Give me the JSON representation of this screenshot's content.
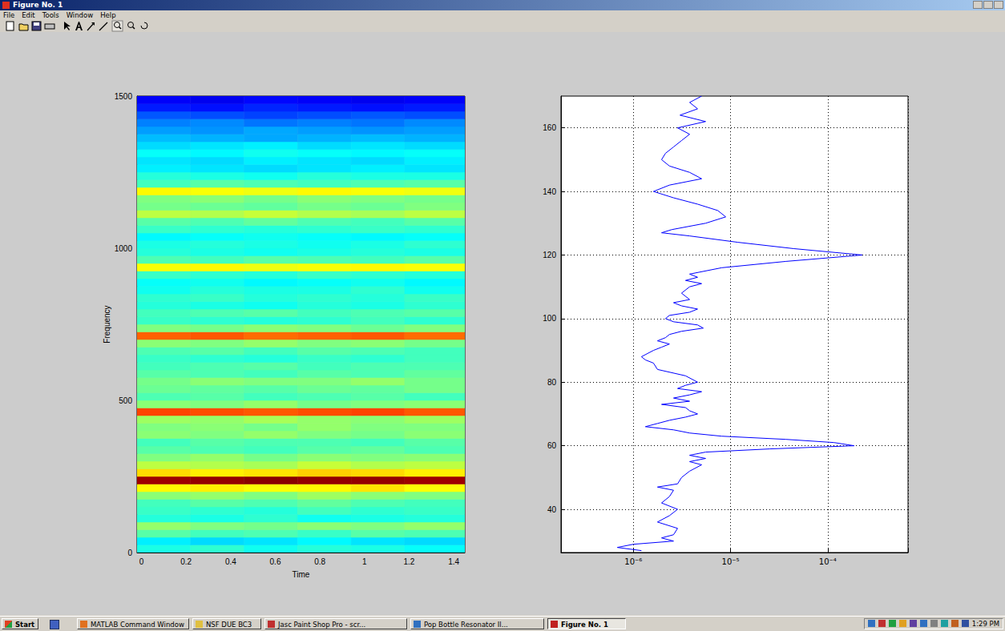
{
  "window": {
    "title": "Figure No. 1",
    "menu": [
      "File",
      "Edit",
      "Tools",
      "Window",
      "Help"
    ]
  },
  "chart_data": [
    {
      "type": "heatmap",
      "xlabel": "Time",
      "ylabel": "Frequency",
      "xlim": [
        -0.02,
        1.45
      ],
      "xticks": [
        0,
        0.2,
        0.4,
        0.6,
        0.8,
        1,
        1.2,
        1.4
      ],
      "ylim": [
        0,
        1500
      ],
      "yticks": [
        0,
        500,
        1000,
        1500
      ],
      "time_edges": [
        -0.02,
        0.22,
        0.46,
        0.7,
        0.94,
        1.18,
        1.45
      ],
      "frequency_edges": [
        0,
        25,
        50,
        75,
        100,
        125,
        150,
        175,
        200,
        225,
        250,
        275,
        300,
        325,
        350,
        375,
        400,
        425,
        450,
        475,
        500,
        525,
        550,
        575,
        600,
        625,
        650,
        675,
        700,
        725,
        750,
        775,
        800,
        825,
        850,
        875,
        900,
        925,
        950,
        975,
        1000,
        1025,
        1050,
        1075,
        1100,
        1125,
        1150,
        1175,
        1200,
        1225,
        1250,
        1275,
        1300,
        1325,
        1350,
        1375,
        1400,
        1425,
        1450,
        1475,
        1500
      ],
      "color_range": [
        0,
        100
      ],
      "cells": [
        [
          40,
          42,
          39,
          41,
          40,
          38
        ],
        [
          36,
          34,
          35,
          37,
          35,
          34
        ],
        [
          46,
          44,
          45,
          43,
          46,
          45
        ],
        [
          52,
          50,
          49,
          51,
          50,
          52
        ],
        [
          41,
          40,
          42,
          39,
          40,
          41
        ],
        [
          43,
          42,
          41,
          44,
          42,
          43
        ],
        [
          44,
          46,
          45,
          47,
          45,
          44
        ],
        [
          51,
          52,
          50,
          53,
          51,
          50
        ],
        [
          63,
          64,
          62,
          63,
          65,
          62
        ],
        [
          97,
          98,
          99,
          98,
          98,
          97
        ],
        [
          66,
          64,
          65,
          67,
          66,
          64
        ],
        [
          56,
          55,
          54,
          57,
          55,
          56
        ],
        [
          50,
          52,
          49,
          51,
          50,
          51
        ],
        [
          46,
          45,
          44,
          46,
          47,
          45
        ],
        [
          44,
          46,
          45,
          45,
          44,
          46
        ],
        [
          51,
          50,
          52,
          50,
          49,
          51
        ],
        [
          50,
          51,
          49,
          52,
          50,
          50
        ],
        [
          53,
          52,
          54,
          52,
          51,
          53
        ],
        [
          81,
          80,
          79,
          80,
          81,
          79
        ],
        [
          51,
          50,
          52,
          49,
          50,
          51
        ],
        [
          45,
          46,
          44,
          45,
          46,
          44
        ],
        [
          48,
          47,
          46,
          48,
          47,
          49
        ],
        [
          49,
          51,
          50,
          50,
          52,
          49
        ],
        [
          46,
          45,
          44,
          46,
          45,
          47
        ],
        [
          44,
          45,
          46,
          44,
          45,
          45
        ],
        [
          43,
          42,
          41,
          43,
          42,
          44
        ],
        [
          45,
          46,
          44,
          46,
          45,
          44
        ],
        [
          51,
          50,
          52,
          50,
          51,
          49
        ],
        [
          78,
          79,
          77,
          78,
          79,
          77
        ],
        [
          50,
          49,
          51,
          50,
          48,
          50
        ],
        [
          43,
          42,
          41,
          42,
          44,
          42
        ],
        [
          44,
          45,
          46,
          44,
          45,
          46
        ],
        [
          41,
          40,
          39,
          41,
          40,
          42
        ],
        [
          42,
          43,
          41,
          42,
          41,
          43
        ],
        [
          39,
          41,
          40,
          40,
          42,
          39
        ],
        [
          38,
          39,
          37,
          38,
          39,
          37
        ],
        [
          43,
          42,
          41,
          43,
          42,
          41
        ],
        [
          62,
          63,
          61,
          62,
          63,
          62
        ],
        [
          45,
          44,
          46,
          45,
          44,
          46
        ],
        [
          41,
          40,
          39,
          40,
          41,
          40
        ],
        [
          40,
          41,
          40,
          39,
          40,
          42
        ],
        [
          37,
          38,
          39,
          38,
          37,
          38
        ],
        [
          43,
          42,
          41,
          42,
          43,
          42
        ],
        [
          46,
          45,
          47,
          45,
          44,
          46
        ],
        [
          56,
          55,
          57,
          55,
          54,
          56
        ],
        [
          49,
          48,
          47,
          49,
          48,
          50
        ],
        [
          50,
          51,
          49,
          51,
          50,
          49
        ],
        [
          63,
          62,
          61,
          63,
          62,
          61
        ],
        [
          44,
          46,
          45,
          44,
          45,
          46
        ],
        [
          41,
          40,
          39,
          41,
          40,
          40
        ],
        [
          36,
          35,
          34,
          35,
          36,
          35
        ],
        [
          35,
          34,
          36,
          35,
          34,
          36
        ],
        [
          38,
          37,
          39,
          38,
          37,
          38
        ],
        [
          34,
          35,
          36,
          34,
          35,
          34
        ],
        [
          31,
          30,
          29,
          30,
          31,
          30
        ],
        [
          28,
          27,
          29,
          28,
          27,
          28
        ],
        [
          25,
          26,
          24,
          25,
          24,
          26
        ],
        [
          21,
          20,
          19,
          20,
          21,
          20
        ],
        [
          15,
          14,
          16,
          15,
          14,
          15
        ],
        [
          12,
          11,
          13,
          12,
          11,
          12
        ]
      ]
    },
    {
      "type": "line",
      "log": "x",
      "grid": true,
      "color": "#0000ff",
      "xlim": [
        1.8e-07,
        0.00067
      ],
      "xticks": [
        {
          "value": 1e-06,
          "label": "10⁻⁶"
        },
        {
          "value": 1e-05,
          "label": "10⁻⁵"
        },
        {
          "value": 0.0001,
          "label": "10⁻⁴"
        }
      ],
      "ylim": [
        26.4,
        170
      ],
      "yticks": [
        40,
        60,
        80,
        100,
        120,
        140,
        160
      ],
      "x": [
        1.21e-06,
        6.84e-07,
        1e-06,
        2.59e-06,
        1.95e-06,
        2.59e-06,
        2.85e-06,
        1.77e-06,
        2.35e-06,
        2.85e-06,
        1.95e-06,
        2.35e-06,
        2.59e-06,
        1.77e-06,
        2.85e-06,
        3.13e-06,
        3.79e-06,
        5.04e-06,
        3.79e-06,
        5.54e-06,
        3.79e-06,
        5.54e-06,
        2.54e-05,
        0.000187,
        0.000116,
        3.72e-05,
        8.11e-06,
        3.79e-06,
        2.59e-06,
        1.33e-06,
        1.77e-06,
        2.35e-06,
        3.44e-06,
        4.58e-06,
        3.79e-06,
        3.44e-06,
        1.95e-06,
        3.79e-06,
        2.59e-06,
        3.79e-06,
        5.04e-06,
        2.85e-06,
        3.44e-06,
        4.58e-06,
        3.44e-06,
        1.77e-06,
        1.61e-06,
        1.33e-06,
        1.21e-06,
        1.61e-06,
        1.95e-06,
        2.35e-06,
        1.77e-06,
        2.14e-06,
        2.35e-06,
        3.13e-06,
        5.24e-06,
        4.58e-06,
        2.59e-06,
        2.14e-06,
        2.35e-06,
        3.79e-06,
        4.58e-06,
        3.13e-06,
        2.59e-06,
        3.79e-06,
        3.13e-06,
        3.79e-06,
        5.04e-06,
        3.44e-06,
        4.58e-06,
        3.79e-06,
        8.11e-06,
        3.72e-05,
        0.000227,
        4.5e-05,
        1.19e-05,
        3.79e-06,
        1.95e-06,
        2.49e-06,
        5.54e-06,
        8.92e-06,
        7.38e-06,
        4.58e-06,
        2.59e-06,
        1.61e-06,
        2.35e-06,
        5.04e-06,
        3.79e-06,
        2.35e-06,
        1.95e-06,
        2.14e-06,
        2.59e-06,
        3.13e-06,
        3.79e-06,
        2.85e-06,
        5.54e-06,
        3.02e-06,
        4.58e-06,
        3.79e-06,
        5.04e-06
      ],
      "y": [
        27,
        28,
        29,
        30,
        31,
        32,
        34,
        36,
        38,
        40,
        42,
        44,
        46,
        47,
        48,
        50,
        52,
        54,
        55,
        56,
        57,
        58,
        59,
        60,
        61,
        62,
        63,
        64,
        65,
        66,
        67,
        68,
        69,
        70,
        71,
        72,
        73,
        74,
        75,
        76,
        77,
        78,
        79,
        80,
        82,
        84,
        86,
        87,
        88,
        90,
        91,
        92,
        93,
        94,
        95,
        96,
        97,
        98,
        99,
        100,
        101,
        102,
        103,
        104,
        105,
        106,
        108,
        110,
        111,
        112,
        113,
        114,
        116,
        118,
        120,
        122,
        124,
        126,
        127,
        128,
        130,
        132,
        134,
        136,
        138,
        140,
        142,
        144,
        146,
        148,
        150,
        152,
        154,
        156,
        158,
        160,
        162,
        164,
        166,
        168,
        170
      ]
    }
  ],
  "taskbar": {
    "start": "Start",
    "items": [
      "MATLAB Command Window",
      "NSF DUE BC3",
      "Jasc Paint Shop Pro - scr...",
      "Pop Bottle Resonator Il...",
      "Figure No. 1"
    ],
    "active": "Figure No. 1",
    "clock": "1:29 PM"
  }
}
